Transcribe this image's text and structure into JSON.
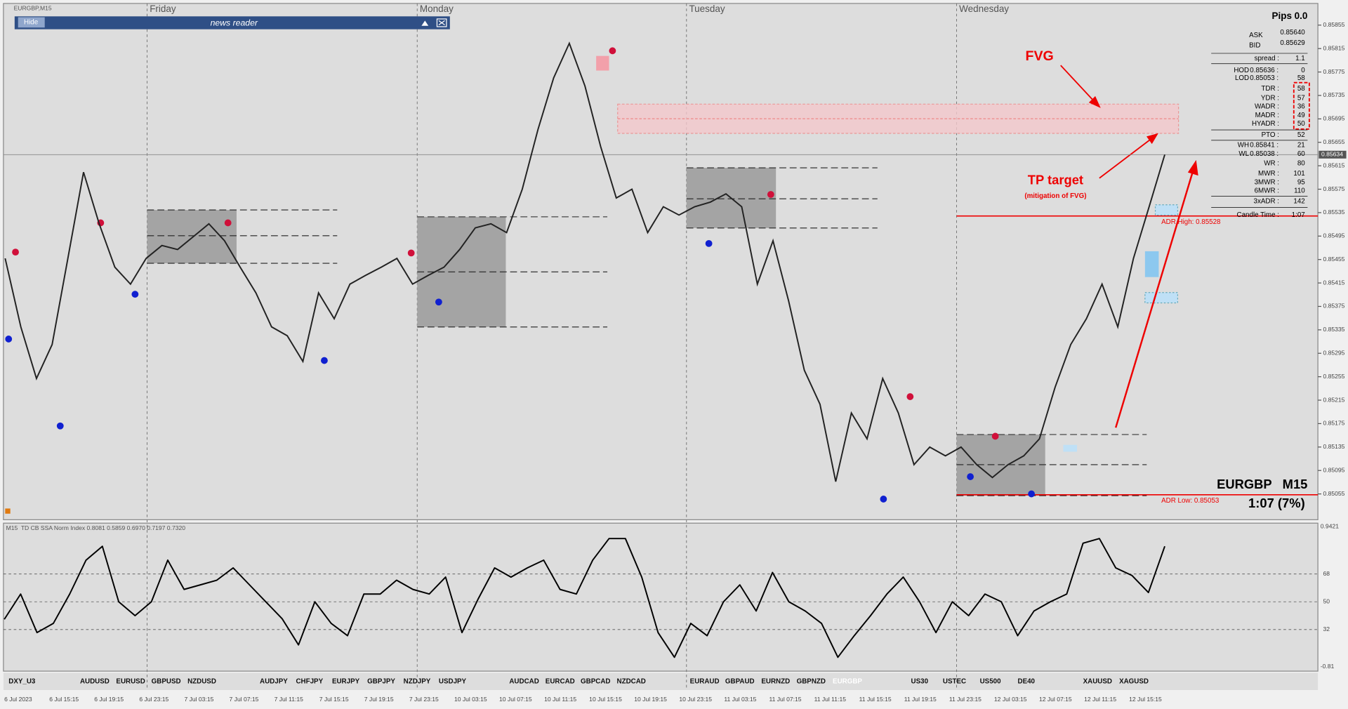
{
  "window": {
    "symbol_label": "EURGBP,M15",
    "news_bar": {
      "button": "Hide",
      "title": "news reader"
    },
    "days": [
      "Friday",
      "Monday",
      "Tuesday",
      "Wednesday"
    ]
  },
  "price_chart": {
    "ylim": [
      0.85011,
      0.85892
    ],
    "yticks": [
      0.85855,
      0.85815,
      0.85775,
      0.85735,
      0.85695,
      0.85655,
      0.85615,
      0.85575,
      0.85535,
      0.85495,
      0.85455,
      0.85415,
      0.85375,
      0.85335,
      0.85295,
      0.85255,
      0.85215,
      0.85175,
      0.85135,
      0.85095,
      0.85055
    ],
    "current_price": 0.85634,
    "close": [
      0.85457,
      0.8534,
      0.85252,
      0.8531,
      0.85457,
      0.85604,
      0.85516,
      0.85442,
      0.85413,
      0.85457,
      0.85479,
      0.85472,
      0.85494,
      0.85516,
      0.85487,
      0.85442,
      0.85398,
      0.8534,
      0.85325,
      0.85281,
      0.85398,
      0.85354,
      0.85413,
      0.85428,
      0.85442,
      0.85457,
      0.85413,
      0.85428,
      0.85442,
      0.85472,
      0.85509,
      0.85516,
      0.85501,
      0.85575,
      0.85677,
      0.85765,
      0.85824,
      0.85751,
      0.85648,
      0.8556,
      0.85575,
      0.85501,
      0.85545,
      0.85531,
      0.85545,
      0.85553,
      0.85567,
      0.85545,
      0.85413,
      0.85487,
      0.85384,
      0.85266,
      0.85208,
      0.85076,
      0.85193,
      0.85149,
      0.85252,
      0.85193,
      0.85105,
      0.85135,
      0.8512,
      0.85135,
      0.85105,
      0.85083,
      0.85105,
      0.8512,
      0.85149,
      0.85237,
      0.8531,
      0.85354,
      0.85413,
      0.8534,
      0.85457,
      0.85545,
      0.85634
    ],
    "annotations": {
      "fvg": "FVG",
      "tp_target": "TP target",
      "tp_note": "(mitigation of FVG)",
      "adr_high": "ADR High: 0.85528",
      "adr_low": "ADR Low: 0.85053",
      "symbol_tf": "EURGBP   M15",
      "candle_timer": "1:07 (7%)"
    }
  },
  "info_panel": {
    "title": "Pips 0.0",
    "rows": [
      {
        "label": "ASK",
        "value": "0.85640"
      },
      {
        "label": "BID",
        "value": "0.85629"
      },
      {
        "label": "spread :",
        "value": "1.1"
      },
      {
        "label": "HOD",
        "price": "0.85636 :",
        "value": "0"
      },
      {
        "label": "LOD",
        "price": "0.85053 :",
        "value": "58"
      },
      {
        "label": "TDR :",
        "value": "58"
      },
      {
        "label": "YDR :",
        "value": "57"
      },
      {
        "label": "WADR :",
        "value": "36"
      },
      {
        "label": "MADR :",
        "value": "49"
      },
      {
        "label": "HYADR :",
        "value": "50"
      },
      {
        "label": "PTO :",
        "value": "52"
      },
      {
        "label": "WH",
        "price": "0.85841 :",
        "value": "21"
      },
      {
        "label": "WL",
        "price": "0.85038 :",
        "value": "60"
      },
      {
        "label": "WR :",
        "value": "80"
      },
      {
        "label": "MWR :",
        "value": "101"
      },
      {
        "label": "3MWR :",
        "value": "95"
      },
      {
        "label": "6MWR :",
        "value": "110"
      },
      {
        "label": "3xADR :",
        "value": "142"
      },
      {
        "label": "Candle Time :",
        "value": "1:07"
      }
    ]
  },
  "oscillator": {
    "title": "M15  TD CB SSA Norm Index 0.8081 0.5859 0.6970 0.7197 0.7320",
    "ylim": [
      5,
      101
    ],
    "yticks": [
      68,
      50,
      32
    ],
    "scale_max_label": "0.9421",
    "scale_min_label": "-0.81",
    "values": [
      38.6,
      55,
      30,
      36,
      55,
      77,
      86,
      50,
      41,
      50,
      77,
      58,
      61,
      64,
      72,
      61,
      50,
      39,
      22,
      50,
      36,
      28,
      55,
      55,
      64,
      58,
      55,
      66,
      30,
      52,
      72,
      66,
      72,
      77,
      58,
      55,
      77,
      91,
      91,
      66,
      30,
      14,
      36,
      28,
      50,
      61,
      44,
      69,
      50,
      44,
      36,
      14,
      28,
      41,
      55,
      66,
      50,
      30,
      50,
      41,
      55,
      50,
      28,
      44,
      50,
      55,
      88,
      91,
      72,
      67,
      56,
      86
    ]
  },
  "symbols": [
    "DXY_U3",
    "AUDUSD",
    "EURUSD",
    "GBPUSD",
    "NZDUSD",
    "AUDJPY",
    "CHFJPY",
    "EURJPY",
    "GBPJPY",
    "NZDJPY",
    "USDJPY",
    "AUDCAD",
    "EURCAD",
    "GBPCAD",
    "NZDCAD",
    "EURAUD",
    "GBPAUD",
    "EURNZD",
    "GBPNZD",
    "EURGBP",
    "US30",
    "USTEC",
    "US500",
    "DE40",
    "XAUUSD",
    "XAGUSD"
  ],
  "time_axis": [
    "6 Jul 2023",
    "6 Jul 15:15",
    "6 Jul 19:15",
    "6 Jul 23:15",
    "7 Jul 03:15",
    "7 Jul 07:15",
    "7 Jul 11:15",
    "7 Jul 15:15",
    "7 Jul 19:15",
    "7 Jul 23:15",
    "10 Jul 03:15",
    "10 Jul 07:15",
    "10 Jul 11:15",
    "10 Jul 15:15",
    "10 Jul 19:15",
    "10 Jul 23:15",
    "11 Jul 03:15",
    "11 Jul 07:15",
    "11 Jul 11:15",
    "11 Jul 15:15",
    "11 Jul 19:15",
    "11 Jul 23:15",
    "12 Jul 03:15",
    "12 Jul 07:15",
    "12 Jul 11:15",
    "12 Jul 15:15"
  ]
}
